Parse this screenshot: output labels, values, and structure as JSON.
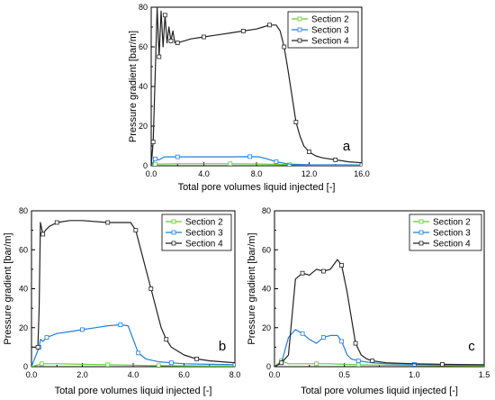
{
  "colors": {
    "section_2": "#66cc33",
    "section_3": "#1e7fe0",
    "section_4": "#222222"
  },
  "chart_data": [
    {
      "type": "line",
      "panel_label": "a",
      "xlabel": "Total pore volumes liquid injected [-]",
      "ylabel": "Pressure gradient [bar/m]",
      "xlim": [
        0,
        16
      ],
      "ylim": [
        0,
        80
      ],
      "xticks": [
        0,
        4,
        8,
        12,
        16
      ],
      "xtick_labels": [
        "0.0",
        "4.0",
        "8.0",
        "12.0",
        "16.0"
      ],
      "yticks": [
        0,
        20,
        40,
        60,
        80
      ],
      "ytick_labels": [
        "0",
        "20",
        "40",
        "60",
        "80"
      ],
      "legend_position": "top-right",
      "series": [
        {
          "name": "Section 2",
          "x": [
            0,
            0.3,
            2,
            4,
            6,
            8,
            9.5,
            10.5,
            12,
            16
          ],
          "y": [
            0,
            0.8,
            1.0,
            1.0,
            1.0,
            0.9,
            0.7,
            0.5,
            0.3,
            0.2
          ]
        },
        {
          "name": "Section 3",
          "x": [
            0,
            0.3,
            0.6,
            1.0,
            2,
            4,
            6,
            7.5,
            8.2,
            8.8,
            9.5,
            10.5,
            12,
            16
          ],
          "y": [
            0,
            3.5,
            3,
            4.5,
            4.5,
            4.5,
            4.5,
            4.6,
            4.5,
            3.5,
            2.0,
            0.8,
            0.5,
            0.4
          ]
        },
        {
          "name": "Section 4",
          "x": [
            0,
            0.15,
            0.3,
            0.45,
            0.6,
            0.75,
            0.9,
            1.05,
            1.2,
            1.35,
            1.5,
            1.65,
            1.8,
            2.0,
            2.5,
            3,
            4,
            5,
            6,
            7,
            8,
            8.5,
            9,
            9.5,
            9.8,
            10.1,
            10.4,
            10.7,
            11.0,
            11.3,
            11.6,
            12.0,
            12.5,
            13,
            14,
            15,
            16
          ],
          "y": [
            0,
            12,
            45,
            80,
            55,
            78,
            60,
            76,
            62,
            70,
            63,
            68,
            62,
            62,
            63,
            64,
            65,
            66,
            67,
            68,
            69,
            70,
            71,
            71,
            68,
            60,
            48,
            35,
            22,
            15,
            10,
            7,
            5,
            4,
            3,
            2,
            1.5
          ]
        }
      ]
    },
    {
      "type": "line",
      "panel_label": "b",
      "xlabel": "Total pore volumes liquid injected [-]",
      "ylabel": "Pressure gradient [bar/m]",
      "xlim": [
        0,
        8
      ],
      "ylim": [
        0,
        80
      ],
      "xticks": [
        0,
        2,
        4,
        6,
        8
      ],
      "xtick_labels": [
        "0.0",
        "2.0",
        "4.0",
        "6.0",
        "8.0"
      ],
      "yticks": [
        0,
        20,
        40,
        60,
        80
      ],
      "ytick_labels": [
        "0",
        "20",
        "40",
        "60",
        "80"
      ],
      "legend_position": "top-right",
      "series": [
        {
          "name": "Section 2",
          "x": [
            0,
            0.4,
            1,
            2,
            3,
            4,
            4.5,
            5,
            6,
            8
          ],
          "y": [
            0,
            1.5,
            1.5,
            1.2,
            1.0,
            0.8,
            0.6,
            0.5,
            0.4,
            0.3
          ]
        },
        {
          "name": "Section 3",
          "x": [
            0,
            0.3,
            0.35,
            0.45,
            0.6,
            1,
            1.5,
            2,
            2.5,
            3,
            3.5,
            3.8,
            4.0,
            4.2,
            4.5,
            5,
            5.5,
            6,
            7,
            8
          ],
          "y": [
            0,
            10,
            14,
            13,
            15,
            17,
            18,
            19,
            20,
            21,
            21.5,
            21,
            14,
            7,
            4,
            2.5,
            2,
            1.5,
            1.2,
            1
          ]
        },
        {
          "name": "Section 4",
          "x": [
            0,
            0.25,
            0.3,
            0.35,
            0.45,
            0.55,
            0.7,
            1,
            1.5,
            2,
            3,
            3.5,
            3.9,
            4.1,
            4.3,
            4.5,
            4.7,
            4.9,
            5.1,
            5.3,
            5.5,
            6,
            6.5,
            7,
            8
          ],
          "y": [
            10,
            10,
            30,
            74,
            68,
            70,
            72,
            74,
            75,
            75,
            74,
            74,
            74,
            70,
            60,
            50,
            40,
            30,
            20,
            14,
            10,
            6,
            4,
            3,
            2
          ]
        }
      ]
    },
    {
      "type": "line",
      "panel_label": "c",
      "xlabel": "Total pore volumes liquid injected [-]",
      "ylabel": "Pressure gradient [bar/m]",
      "xlim": [
        0,
        1.5
      ],
      "ylim": [
        0,
        80
      ],
      "xticks": [
        0,
        0.5,
        1,
        1.5
      ],
      "xtick_labels": [
        "0.0",
        "0.5",
        "1.0",
        "1.5"
      ],
      "yticks": [
        0,
        20,
        40,
        60,
        80
      ],
      "ytick_labels": [
        "0",
        "20",
        "40",
        "60",
        "80"
      ],
      "legend_position": "top-right",
      "series": [
        {
          "name": "Section 2",
          "x": [
            0,
            0.05,
            0.1,
            0.2,
            0.3,
            0.4,
            0.5,
            0.6,
            0.8,
            1.0,
            1.2,
            1.5
          ],
          "y": [
            0,
            3,
            1.5,
            1.5,
            1.5,
            1.5,
            1.2,
            1.0,
            0.8,
            0.6,
            0.5,
            0.4
          ]
        },
        {
          "name": "Section 3",
          "x": [
            0,
            0.05,
            0.1,
            0.15,
            0.2,
            0.25,
            0.3,
            0.35,
            0.4,
            0.45,
            0.48,
            0.52,
            0.55,
            0.6,
            0.7,
            0.8,
            1.0,
            1.2,
            1.5
          ],
          "y": [
            0,
            2,
            15,
            19,
            17,
            14,
            12,
            15,
            16,
            16,
            13,
            6,
            4,
            3,
            2,
            1.5,
            1.2,
            1,
            0.8
          ]
        },
        {
          "name": "Section 4",
          "x": [
            0,
            0.05,
            0.1,
            0.15,
            0.2,
            0.25,
            0.3,
            0.35,
            0.4,
            0.45,
            0.48,
            0.52,
            0.55,
            0.58,
            0.62,
            0.66,
            0.7,
            0.8,
            1.0,
            1.2,
            1.5
          ],
          "y": [
            0,
            2,
            6,
            45,
            48,
            47,
            50,
            49,
            50,
            55,
            52,
            38,
            25,
            12,
            6,
            4,
            3,
            2,
            1.5,
            1.2,
            1
          ]
        }
      ]
    }
  ]
}
